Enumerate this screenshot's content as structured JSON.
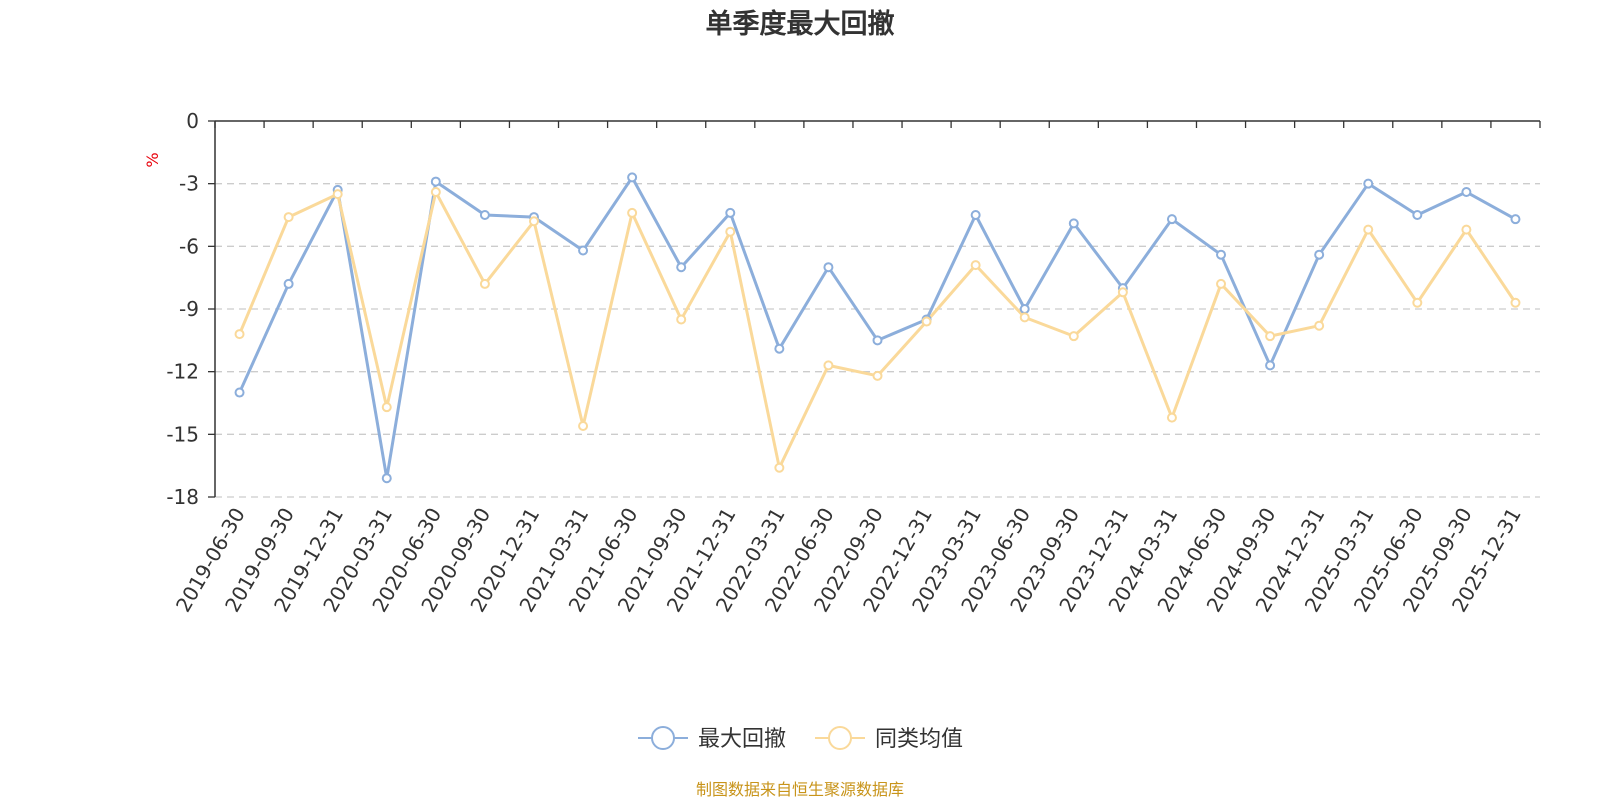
{
  "chart_data": {
    "type": "line",
    "title": "单季度最大回撤",
    "ylabel": "%",
    "ylim": [
      -18,
      0
    ],
    "yticks": [
      0,
      -3,
      -6,
      -9,
      -12,
      -15,
      -18
    ],
    "grid": true,
    "legend_position": "bottom-center",
    "x": [
      "2019-06-30",
      "2019-09-30",
      "2019-12-31",
      "2020-03-31",
      "2020-06-30",
      "2020-09-30",
      "2020-12-31",
      "2021-03-31",
      "2021-06-30",
      "2021-09-30",
      "2021-12-31",
      "2022-03-31",
      "2022-06-30",
      "2022-09-30",
      "2022-12-31",
      "2023-03-31",
      "2023-06-30",
      "2023-09-30",
      "2023-12-31",
      "2024-03-31",
      "2024-06-30",
      "2024-09-30",
      "2024-12-31",
      "2025-03-31",
      "2025-06-30",
      "2025-09-30",
      "2025-12-31"
    ],
    "series": [
      {
        "name": "最大回撤",
        "color": "#8caedb",
        "values": [
          -13.0,
          -7.8,
          -3.3,
          -17.1,
          -2.9,
          -4.5,
          -4.6,
          -6.2,
          -2.7,
          -7.0,
          -4.4,
          -10.9,
          -7.0,
          -10.5,
          -9.5,
          -4.5,
          -9.0,
          -4.9,
          -8.0,
          -4.7,
          -6.4,
          -11.7,
          -6.4,
          -3.0,
          -4.5,
          -3.4,
          -4.7
        ]
      },
      {
        "name": "同类均值",
        "color": "#fad99a",
        "values": [
          -10.2,
          -4.6,
          -3.5,
          -13.7,
          -3.4,
          -7.8,
          -4.8,
          -14.6,
          -4.4,
          -9.5,
          -5.3,
          -16.6,
          -11.7,
          -12.2,
          -9.6,
          -6.9,
          -9.4,
          -10.3,
          -8.2,
          -14.2,
          -7.8,
          -10.3,
          -9.8,
          -5.2,
          -8.7,
          -5.2,
          -8.7
        ]
      }
    ],
    "source_note": "制图数据来自恒生聚源数据库"
  }
}
